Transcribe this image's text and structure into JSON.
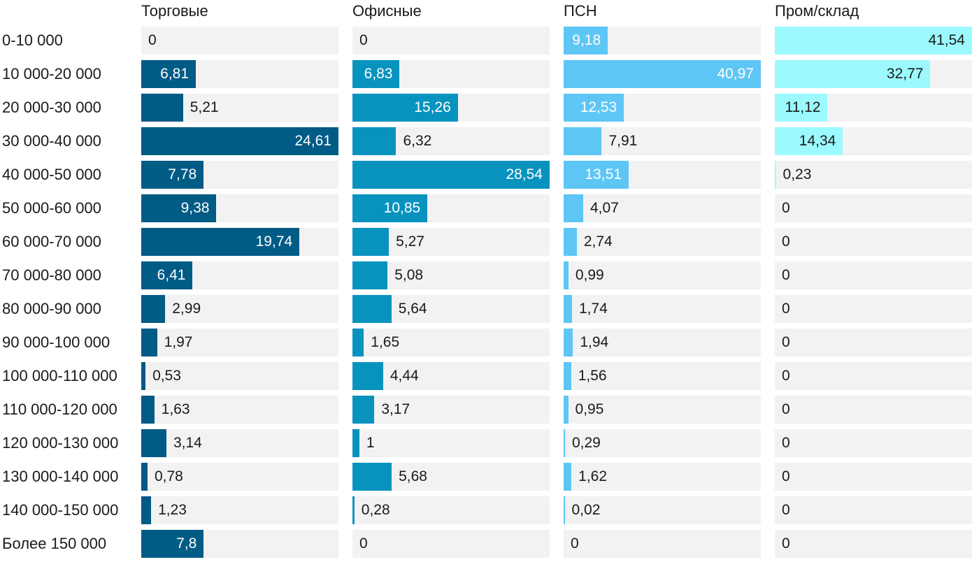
{
  "chart_data": {
    "type": "bar",
    "orientation": "horizontal",
    "layout": "small-multiples",
    "categories": [
      "0-10 000",
      "10 000-20 000",
      "20 000-30 000",
      "30 000-40 000",
      "40 000-50 000",
      "50 000-60 000",
      "60 000-70 000",
      "70 000-80 000",
      "80 000-90 000",
      "90 000-100 000",
      "100 000-110 000",
      "110 000-120 000",
      "120 000-130 000",
      "130 000-140 000",
      "140 000-150 000",
      "Более 150 000"
    ],
    "series": [
      {
        "name": "Торговые",
        "color": "#005b85",
        "max": 24.61,
        "values": [
          0,
          6.81,
          5.21,
          24.61,
          7.78,
          9.38,
          19.74,
          6.41,
          2.99,
          1.97,
          0.53,
          1.63,
          3.14,
          0.78,
          1.23,
          7.8
        ],
        "labels": [
          "0",
          "6,81",
          "5,21",
          "24,61",
          "7,78",
          "9,38",
          "19,74",
          "6,41",
          "2,99",
          "1,97",
          "0,53",
          "1,63",
          "3,14",
          "0,78",
          "1,23",
          "7,8"
        ]
      },
      {
        "name": "Офисные",
        "color": "#0893bf",
        "max": 28.54,
        "values": [
          0,
          6.83,
          15.26,
          6.32,
          28.54,
          10.85,
          5.27,
          5.08,
          5.64,
          1.65,
          4.44,
          3.17,
          1,
          5.68,
          0.28,
          0
        ],
        "labels": [
          "0",
          "6,83",
          "15,26",
          "6,32",
          "28,54",
          "10,85",
          "5,27",
          "5,08",
          "5,64",
          "1,65",
          "4,44",
          "3,17",
          "1",
          "5,68",
          "0,28",
          "0"
        ]
      },
      {
        "name": "ПСН",
        "color": "#5ec6f5",
        "max": 40.97,
        "values": [
          9.18,
          40.97,
          12.53,
          7.91,
          13.51,
          4.07,
          2.74,
          0.99,
          1.74,
          1.94,
          1.56,
          0.95,
          0.29,
          1.62,
          0.02,
          0
        ],
        "labels": [
          "9,18",
          "40,97",
          "12,53",
          "7,91",
          "13,51",
          "4,07",
          "2,74",
          "0,99",
          "1,74",
          "1,94",
          "1,56",
          "0,95",
          "0,29",
          "1,62",
          "0,02",
          "0"
        ]
      },
      {
        "name": "Пром/склад",
        "color": "#9cfaff",
        "max": 41.54,
        "values": [
          41.54,
          32.77,
          11.12,
          14.34,
          0.23,
          0,
          0,
          0,
          0,
          0,
          0,
          0,
          0,
          0,
          0,
          0
        ],
        "labels": [
          "41,54",
          "32,77",
          "11,12",
          "14,34",
          "0,23",
          "0",
          "0",
          "0",
          "0",
          "0",
          "0",
          "0",
          "0",
          "0",
          "0",
          "0"
        ]
      }
    ]
  }
}
